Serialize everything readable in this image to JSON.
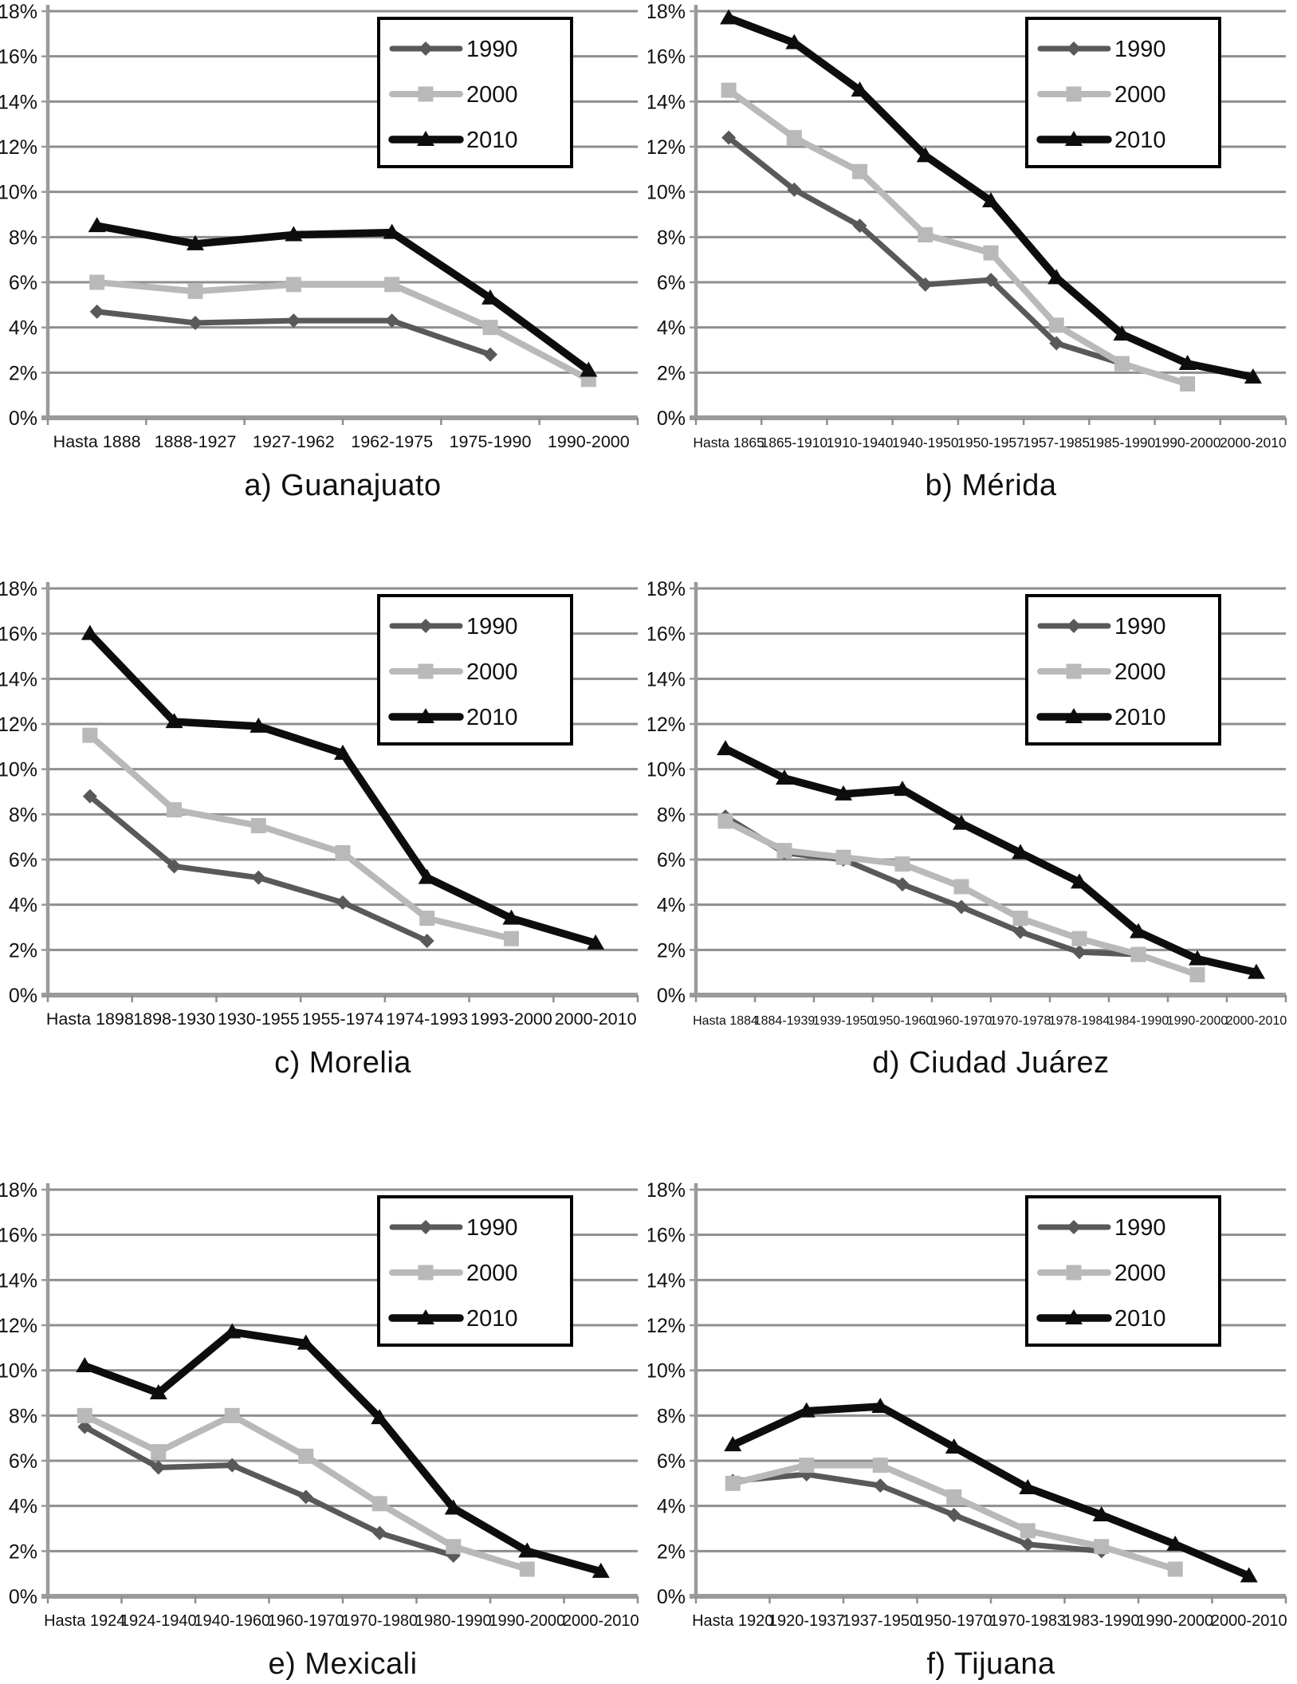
{
  "page": {
    "background": "#ffffff",
    "text_color": "#111111",
    "grid_color": "#8e8e8e",
    "axis_color": "#9a9a9a"
  },
  "y_axis_labels": [
    "0%",
    "2%",
    "4%",
    "6%",
    "8%",
    "10%",
    "12%",
    "14%",
    "16%",
    "18%"
  ],
  "legend": {
    "labels": [
      "1990",
      "2000",
      "2010"
    ],
    "position": "top-right"
  },
  "chart_data": [
    {
      "type": "line",
      "title": "a) Guanajuato",
      "ylim": [
        0,
        18
      ],
      "ytick_step": 2,
      "grid": true,
      "legend_position": "top-right",
      "categories": [
        "Hasta 1888",
        "1888-1927",
        "1927-1962",
        "1962-1975",
        "1975-1990",
        "1990-2000"
      ],
      "series": [
        {
          "name": "1990",
          "color": "#595959",
          "marker": "diamond",
          "values": [
            4.7,
            4.2,
            4.3,
            4.3,
            2.8,
            null
          ]
        },
        {
          "name": "2000",
          "color": "#b9b9b9",
          "marker": "square",
          "values": [
            6.0,
            5.6,
            5.9,
            5.9,
            4.0,
            1.7
          ]
        },
        {
          "name": "2010",
          "color": "#0d0d0d",
          "marker": "triangle",
          "values": [
            8.5,
            7.7,
            8.1,
            8.2,
            5.3,
            2.1
          ]
        }
      ]
    },
    {
      "type": "line",
      "title": "b) Mérida",
      "ylim": [
        0,
        18
      ],
      "ytick_step": 2,
      "grid": true,
      "legend_position": "top-right",
      "categories": [
        "Hasta 1865",
        "1865-1910",
        "1910-1940",
        "1940-1950",
        "1950-1957",
        "1957-1985",
        "1985-1990",
        "1990-2000",
        "2000-2010"
      ],
      "series": [
        {
          "name": "1990",
          "color": "#595959",
          "marker": "diamond",
          "values": [
            12.4,
            10.1,
            8.5,
            5.9,
            6.1,
            3.3,
            2.4,
            null,
            null
          ]
        },
        {
          "name": "2000",
          "color": "#b9b9b9",
          "marker": "square",
          "values": [
            14.5,
            12.4,
            10.9,
            8.1,
            7.3,
            4.1,
            2.4,
            1.5,
            null
          ]
        },
        {
          "name": "2010",
          "color": "#0d0d0d",
          "marker": "triangle",
          "values": [
            17.7,
            16.6,
            14.5,
            11.6,
            9.6,
            6.2,
            3.7,
            2.4,
            1.8
          ]
        }
      ]
    },
    {
      "type": "line",
      "title": "c) Morelia",
      "ylim": [
        0,
        18
      ],
      "ytick_step": 2,
      "grid": true,
      "legend_position": "top-right",
      "categories": [
        "Hasta 1898",
        "1898-1930",
        "1930-1955",
        "1955-1974",
        "1974-1993",
        "1993-2000",
        "2000-2010"
      ],
      "series": [
        {
          "name": "1990",
          "color": "#595959",
          "marker": "diamond",
          "values": [
            8.8,
            5.7,
            5.2,
            4.1,
            2.4,
            null,
            null
          ]
        },
        {
          "name": "2000",
          "color": "#b9b9b9",
          "marker": "square",
          "values": [
            11.5,
            8.2,
            7.5,
            6.3,
            3.4,
            2.5,
            null
          ]
        },
        {
          "name": "2010",
          "color": "#0d0d0d",
          "marker": "triangle",
          "values": [
            16.0,
            12.1,
            11.9,
            10.7,
            5.2,
            3.4,
            2.3
          ]
        }
      ]
    },
    {
      "type": "line",
      "title": "d) Ciudad Juárez",
      "ylim": [
        0,
        18
      ],
      "ytick_step": 2,
      "grid": true,
      "legend_position": "top-right",
      "categories": [
        "Hasta 1884",
        "1884-1939",
        "1939-1950",
        "1950-1960",
        "1960-1970",
        "1970-1978",
        "1978-1984",
        "1984-1990",
        "1990-2000",
        "2000-2010"
      ],
      "series": [
        {
          "name": "1990",
          "color": "#595959",
          "marker": "diamond",
          "values": [
            7.9,
            6.3,
            6.0,
            4.9,
            3.9,
            2.8,
            1.9,
            1.8,
            null,
            null
          ]
        },
        {
          "name": "2000",
          "color": "#b9b9b9",
          "marker": "square",
          "values": [
            7.7,
            6.4,
            6.1,
            5.8,
            4.8,
            3.4,
            2.5,
            1.8,
            0.9,
            null
          ]
        },
        {
          "name": "2010",
          "color": "#0d0d0d",
          "marker": "triangle",
          "values": [
            10.9,
            9.6,
            8.9,
            9.1,
            7.6,
            6.3,
            5.0,
            2.8,
            1.6,
            1.0
          ]
        }
      ]
    },
    {
      "type": "line",
      "title": "e) Mexicali",
      "ylim": [
        0,
        18
      ],
      "ytick_step": 2,
      "grid": true,
      "legend_position": "top-right",
      "categories": [
        "Hasta 1924",
        "1924-1940",
        "1940-1960",
        "1960-1970",
        "1970-1980",
        "1980-1990",
        "1990-2000",
        "2000-2010"
      ],
      "series": [
        {
          "name": "1990",
          "color": "#595959",
          "marker": "diamond",
          "values": [
            7.5,
            5.7,
            5.8,
            4.4,
            2.8,
            1.8,
            null,
            null
          ]
        },
        {
          "name": "2000",
          "color": "#b9b9b9",
          "marker": "square",
          "values": [
            8.0,
            6.4,
            8.0,
            6.2,
            4.1,
            2.2,
            1.2,
            null
          ]
        },
        {
          "name": "2010",
          "color": "#0d0d0d",
          "marker": "triangle",
          "values": [
            10.2,
            9.0,
            11.7,
            11.2,
            7.9,
            3.9,
            2.0,
            1.1
          ]
        }
      ]
    },
    {
      "type": "line",
      "title": "f) Tijuana",
      "ylim": [
        0,
        18
      ],
      "ytick_step": 2,
      "grid": true,
      "legend_position": "top-right",
      "categories": [
        "Hasta 1920",
        "1920-1937",
        "1937-1950",
        "1950-1970",
        "1970-1983",
        "1983-1990",
        "1990-2000",
        "2000-2010"
      ],
      "series": [
        {
          "name": "1990",
          "color": "#595959",
          "marker": "diamond",
          "values": [
            5.1,
            5.4,
            4.9,
            3.6,
            2.3,
            2.0,
            null,
            null
          ]
        },
        {
          "name": "2000",
          "color": "#b9b9b9",
          "marker": "square",
          "values": [
            5.0,
            5.8,
            5.8,
            4.4,
            2.9,
            2.2,
            1.2,
            null
          ]
        },
        {
          "name": "2010",
          "color": "#0d0d0d",
          "marker": "triangle",
          "values": [
            6.7,
            8.2,
            8.4,
            6.6,
            4.8,
            3.6,
            2.3,
            0.9
          ]
        }
      ]
    }
  ]
}
